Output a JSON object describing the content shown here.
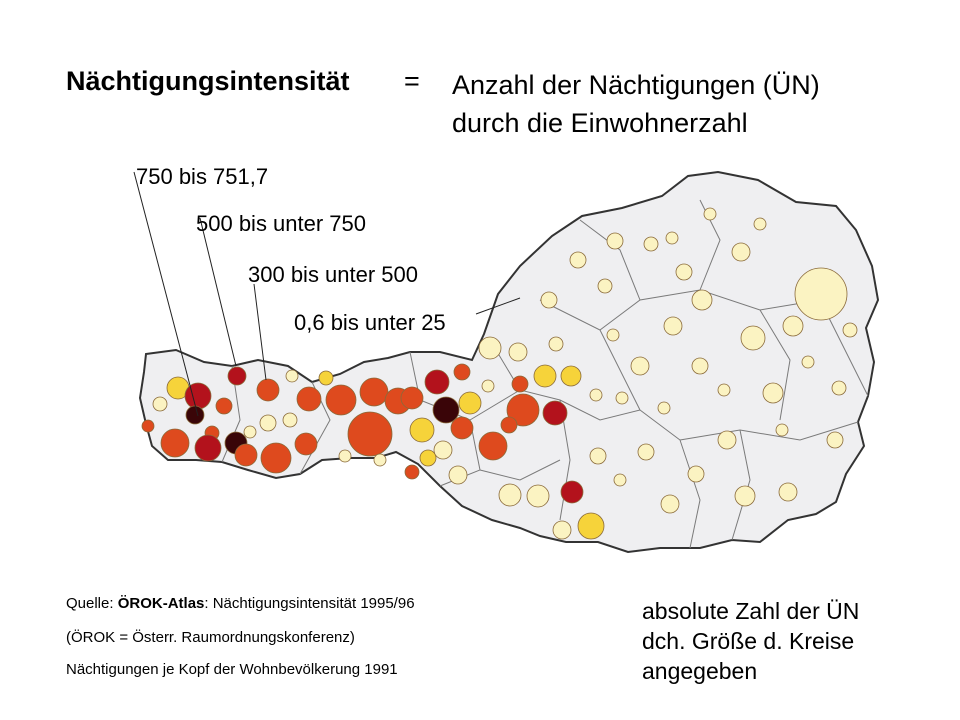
{
  "title": {
    "term": "Nächtigungsintensität",
    "equals": "=",
    "definition_line1": "Anzahl der Nächtigungen (ÜN)",
    "definition_line2": "durch die Einwohnerzahl"
  },
  "legend": {
    "items": [
      {
        "label": "750 bis 751,7",
        "color": "#3a0508"
      },
      {
        "label": "500 bis unter 750",
        "color": "#b3121c"
      },
      {
        "label": "300 bis unter 500",
        "color": "#de4a1e"
      },
      {
        "label": "0,6 bis unter 25",
        "color": "#fbf3c2"
      }
    ]
  },
  "source": {
    "line1_prefix": "Quelle: ",
    "line1_bold": "ÖROK-Atlas",
    "line1_rest": ": Nächtigungsintensität 1995/96",
    "line2": "(ÖROK = Österr. Raumordnungskonferenz)",
    "line3": "Nächtigungen je Kopf der Wohnbevölkerung 1991"
  },
  "note": {
    "line1": "absolute Zahl der ÜN",
    "line2": "dch. Größe d. Kreise",
    "line3": "angegeben"
  },
  "colors": {
    "very_high": "#3a0508",
    "high": "#b3121c",
    "upper_mid": "#de4a1e",
    "mid": "#f5a31c",
    "lower_mid": "#f6d33a",
    "low": "#fbf3c2",
    "map_fill": "#efeff1",
    "border": "#333333"
  }
}
